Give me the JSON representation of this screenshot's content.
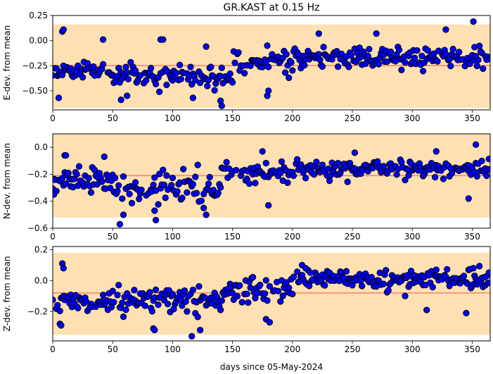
{
  "figure": {
    "title": "GR.KAST at 0.15 Hz",
    "xlabel": "days since 05-May-2024"
  },
  "colors": {
    "band": "#ffe0b2",
    "mean_line": "#f08070",
    "marker_fill": "#0000ff",
    "marker_edge": "#000000"
  },
  "chart_data": [
    {
      "type": "scatter",
      "ylabel": "E-dev. from mean",
      "xlim": [
        0,
        365
      ],
      "ylim": [
        -0.69,
        0.25
      ],
      "xticks": [
        0,
        50,
        100,
        150,
        200,
        250,
        300,
        350
      ],
      "yticks": [
        0.25,
        0.0,
        -0.25,
        -0.5
      ],
      "ytick_labels": [
        "0.25",
        "0.00",
        "−0.25",
        "−0.50"
      ],
      "mean": -0.25,
      "band": [
        -0.67,
        0.16
      ],
      "seed": 11,
      "segments": [
        {
          "from": 0,
          "to": 50,
          "base": -0.3,
          "spread": 0.09
        },
        {
          "from": 50,
          "to": 150,
          "base": -0.36,
          "spread": 0.11
        },
        {
          "from": 150,
          "to": 200,
          "base": -0.2,
          "spread": 0.11
        },
        {
          "from": 200,
          "to": 365,
          "base": -0.17,
          "spread": 0.09
        }
      ],
      "outliers": [
        [
          8,
          0.09
        ],
        [
          9,
          0.11
        ],
        [
          42,
          0.01
        ],
        [
          90,
          0.01
        ],
        [
          92,
          0.01
        ],
        [
          128,
          -0.06
        ],
        [
          140,
          -0.6
        ],
        [
          141,
          -0.65
        ],
        [
          179,
          -0.55
        ],
        [
          222,
          0.07
        ],
        [
          270,
          0.07
        ],
        [
          328,
          0.11
        ],
        [
          351,
          0.19
        ],
        [
          5,
          -0.57
        ],
        [
          57,
          -0.59
        ],
        [
          62,
          -0.55
        ],
        [
          117,
          -0.57
        ],
        [
          180,
          -0.5
        ]
      ]
    },
    {
      "type": "scatter",
      "ylabel": "N-dev. from mean",
      "xlim": [
        0,
        365
      ],
      "ylim": [
        -0.6,
        0.1
      ],
      "xticks": [
        0,
        50,
        100,
        150,
        200,
        250,
        300,
        350
      ],
      "yticks": [
        0.0,
        -0.2,
        -0.4,
        -0.6
      ],
      "ytick_labels": [
        "0.0",
        "−0.2",
        "−0.4",
        "−0.6"
      ],
      "mean": -0.21,
      "band": [
        -0.52,
        0.1
      ],
      "seed": 23,
      "segments": [
        {
          "from": 0,
          "to": 50,
          "base": -0.25,
          "spread": 0.08
        },
        {
          "from": 50,
          "to": 140,
          "base": -0.3,
          "spread": 0.1
        },
        {
          "from": 140,
          "to": 200,
          "base": -0.19,
          "spread": 0.07
        },
        {
          "from": 200,
          "to": 365,
          "base": -0.16,
          "spread": 0.06
        }
      ],
      "outliers": [
        [
          10,
          -0.06
        ],
        [
          11,
          -0.06
        ],
        [
          43,
          -0.07
        ],
        [
          56,
          -0.57
        ],
        [
          59,
          -0.5
        ],
        [
          86,
          -0.54
        ],
        [
          85,
          -0.47
        ],
        [
          128,
          -0.5
        ],
        [
          126,
          -0.45
        ],
        [
          175,
          -0.03
        ],
        [
          180,
          -0.43
        ],
        [
          252,
          -0.04
        ],
        [
          320,
          -0.03
        ],
        [
          353,
          0.02
        ],
        [
          347,
          -0.38
        ],
        [
          1,
          -0.35
        ]
      ]
    },
    {
      "type": "scatter",
      "ylabel": "Z-dev. from mean",
      "xlim": [
        0,
        365
      ],
      "ylim": [
        -0.39,
        0.22
      ],
      "xticks": [
        0,
        50,
        100,
        150,
        200,
        250,
        300,
        350
      ],
      "yticks": [
        0.2,
        0.0,
        -0.2
      ],
      "ytick_labels": [
        "0.2",
        "0.0",
        "−0.2"
      ],
      "mean": -0.08,
      "band": [
        -0.35,
        0.18
      ],
      "seed": 37,
      "segments": [
        {
          "from": 0,
          "to": 50,
          "base": -0.14,
          "spread": 0.05
        },
        {
          "from": 50,
          "to": 140,
          "base": -0.13,
          "spread": 0.08
        },
        {
          "from": 140,
          "to": 200,
          "base": -0.06,
          "spread": 0.07
        },
        {
          "from": 200,
          "to": 365,
          "base": 0.01,
          "spread": 0.05
        }
      ],
      "outliers": [
        [
          8,
          0.11
        ],
        [
          9,
          0.08
        ],
        [
          6,
          -0.28
        ],
        [
          7,
          -0.29
        ],
        [
          84,
          -0.31
        ],
        [
          85,
          -0.32
        ],
        [
          116,
          -0.36
        ],
        [
          123,
          -0.32
        ],
        [
          178,
          -0.25
        ],
        [
          181,
          -0.27
        ],
        [
          208,
          0.1
        ],
        [
          211,
          0.08
        ],
        [
          320,
          0.07
        ],
        [
          351,
          0.08
        ],
        [
          345,
          -0.21
        ],
        [
          312,
          -0.19
        ],
        [
          294,
          -0.1
        ]
      ]
    }
  ]
}
